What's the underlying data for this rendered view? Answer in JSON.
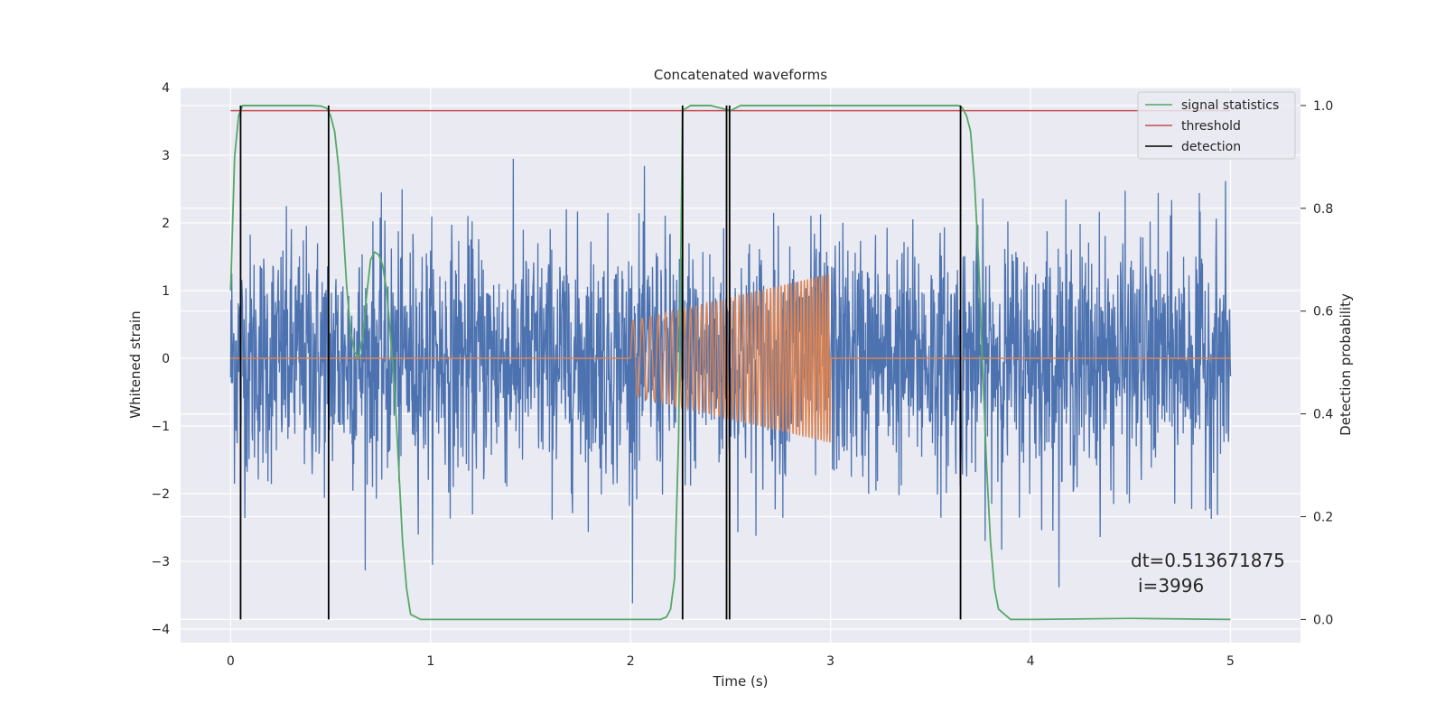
{
  "chart_data": {
    "type": "line",
    "title": "Concatenated waveforms",
    "xlabel": "Time (s)",
    "ylabel": "Whitened strain",
    "y2label": "Detection probability",
    "xlim": [
      -0.25,
      5.35
    ],
    "ylim": [
      -4.2,
      4.0
    ],
    "y2lim": [
      -0.045,
      1.035
    ],
    "xticks": [
      0,
      1,
      2,
      3,
      4,
      5
    ],
    "yticks": [
      -4,
      -3,
      -2,
      -1,
      0,
      1,
      2,
      3,
      4
    ],
    "y2ticks": [
      0.0,
      0.2,
      0.4,
      0.6,
      0.8,
      1.0
    ],
    "grid": true,
    "legend_position": "top-right",
    "legend": [
      {
        "name": "signal statistics",
        "color": "#55a868"
      },
      {
        "name": "threshold",
        "color": "#c44e52"
      },
      {
        "name": "detection",
        "color": "#000000"
      }
    ],
    "strain_noise": {
      "color": "#4c72b0",
      "t_start": 0.0,
      "t_end": 5.0,
      "std": 0.9,
      "min": -3.9,
      "max": 3.6
    },
    "injected_signal": {
      "color": "#dd8452",
      "t_start": 2.0,
      "t_end": 3.0,
      "amplitude_start": 0.55,
      "amplitude_end": 1.25,
      "freq_start": 20,
      "freq_end": 70
    },
    "signal_statistics": {
      "color": "#55a868",
      "t": [
        0.0,
        0.02,
        0.04,
        0.06,
        0.08,
        0.1,
        0.2,
        0.3,
        0.4,
        0.45,
        0.48,
        0.5,
        0.52,
        0.54,
        0.56,
        0.58,
        0.6,
        0.62,
        0.64,
        0.66,
        0.68,
        0.7,
        0.72,
        0.74,
        0.76,
        0.78,
        0.8,
        0.82,
        0.84,
        0.86,
        0.88,
        0.9,
        0.95,
        1.0,
        1.5,
        2.0,
        2.1,
        2.15,
        2.18,
        2.2,
        2.22,
        2.24,
        2.26,
        2.3,
        2.4,
        2.45,
        2.5,
        2.55,
        2.6,
        3.0,
        3.5,
        3.64,
        3.66,
        3.68,
        3.7,
        3.72,
        3.74,
        3.76,
        3.78,
        3.8,
        3.82,
        3.84,
        3.9,
        4.0,
        4.5,
        5.0
      ],
      "values": [
        0.64,
        0.9,
        0.98,
        1.0,
        1.0,
        1.0,
        1.0,
        1.0,
        1.0,
        0.999,
        0.995,
        0.98,
        0.95,
        0.88,
        0.78,
        0.65,
        0.56,
        0.52,
        0.51,
        0.55,
        0.63,
        0.7,
        0.715,
        0.71,
        0.69,
        0.64,
        0.55,
        0.45,
        0.3,
        0.15,
        0.06,
        0.01,
        0.0,
        0.0,
        0.0,
        0.0,
        0.0,
        0.0,
        0.005,
        0.02,
        0.08,
        0.35,
        0.99,
        1.0,
        1.0,
        0.995,
        0.99,
        1.0,
        1.0,
        1.0,
        1.0,
        1.0,
        0.995,
        0.98,
        0.95,
        0.85,
        0.7,
        0.5,
        0.3,
        0.15,
        0.06,
        0.02,
        0.0,
        0.0,
        0.002,
        0.0
      ]
    },
    "threshold": {
      "color": "#c44e52",
      "value": 0.99,
      "t_start": 0.0,
      "t_end": 5.0
    },
    "detections": {
      "color": "#000000",
      "t": [
        0.05,
        0.49,
        2.26,
        2.48,
        2.495,
        3.65
      ],
      "low": 0.0,
      "high": 1.0
    },
    "annotation": {
      "line1": "dt=0.513671875",
      "line2": "i=3996"
    }
  }
}
